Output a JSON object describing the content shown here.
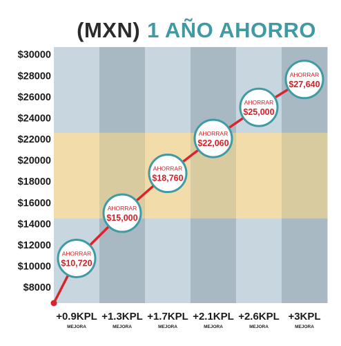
{
  "title": {
    "unit": "(MXN)",
    "main": "1 AÑO AHORRO"
  },
  "colors": {
    "band_light": "#c8d6e0",
    "band_dark": "#a9b9c3",
    "band_highlight_light": "#f1dcaa",
    "band_highlight_dark": "#d9cba0",
    "line": "#d9242b",
    "bubble_border": "#3f9aa3",
    "bubble_text": "#d41f26",
    "title_accent": "#3f9aa3"
  },
  "chart_data": {
    "type": "line",
    "title": "(MXN) 1 AÑO AHORRO",
    "categories": [
      "+0.9KPL",
      "+1.3KPL",
      "+1.7KPL",
      "+2.1KPL",
      "+2.6KPL",
      "+3KPL"
    ],
    "category_sublabel": "MEJORA",
    "series": [
      {
        "values": [
          10720,
          15000,
          18760,
          22060,
          25000,
          27640
        ]
      }
    ],
    "start_value": 6500,
    "point_label": "AHORRAR",
    "point_value_labels": [
      "$10,720",
      "$15,000",
      "$18,760",
      "$22,060",
      "$25,000",
      "$27,640"
    ],
    "y_ticks": [
      8000,
      10000,
      12000,
      14000,
      16000,
      18000,
      20000,
      22000,
      24000,
      26000,
      28000,
      30000
    ],
    "y_tick_labels": [
      "$8000",
      "$10000",
      "$12000",
      "$14000",
      "$16000",
      "$18000",
      "$20000",
      "$22000",
      "$24000",
      "$26000",
      "$28000",
      "$30000"
    ],
    "ylim": [
      6500,
      30700
    ],
    "highlight_band": [
      14500,
      22600
    ],
    "grid": false,
    "legend": "none"
  }
}
